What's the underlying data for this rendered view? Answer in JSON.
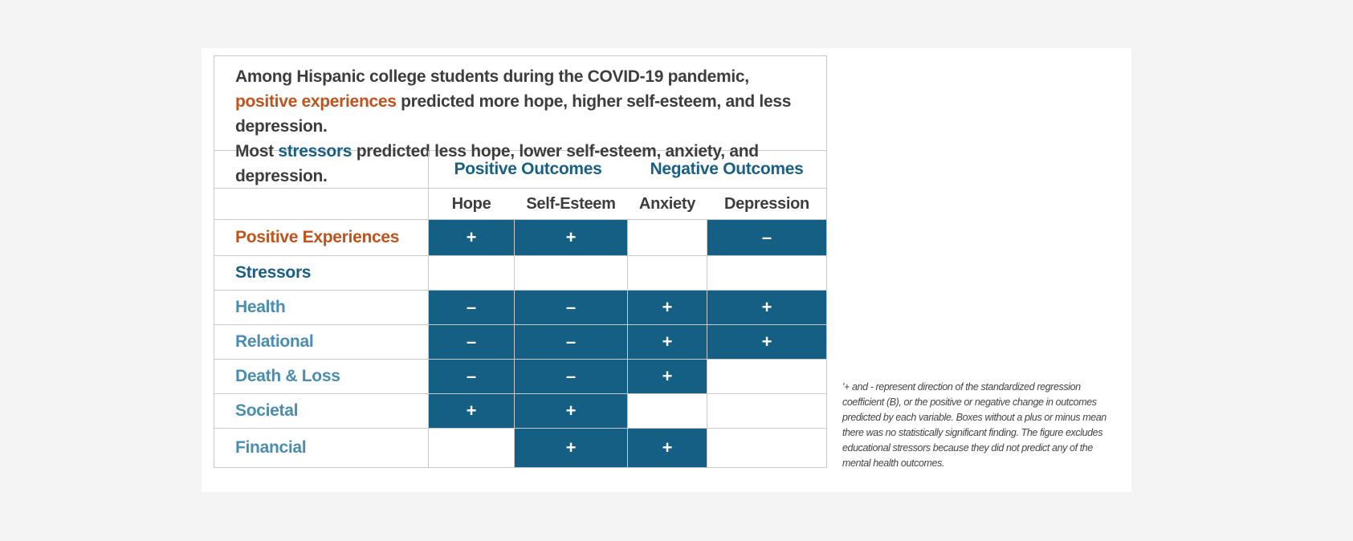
{
  "title": {
    "part1": "Among Hispanic college students during the COVID-19 pandemic, ",
    "positive_word": "positive experiences",
    "part2": " predicted more hope, higher self-esteem, and less depression.",
    "part3": "Most ",
    "stressors_word": "stressors",
    "part4": " predicted less hope, lower self-esteem, anxiety, and depression."
  },
  "group_headers": {
    "positive": "Positive Outcomes",
    "negative": "Negative Outcomes"
  },
  "columns": [
    "Hope",
    "Self-Esteem",
    "Anxiety",
    "Depression"
  ],
  "rows": {
    "positive_experiences": {
      "label": "Positive Experiences",
      "cells": [
        "+",
        "+",
        "",
        "–"
      ]
    },
    "stressors_header": "Stressors",
    "health": {
      "label": "Health",
      "cells": [
        "–",
        "–",
        "+",
        "+"
      ]
    },
    "relational": {
      "label": "Relational",
      "cells": [
        "–",
        "–",
        "+",
        "+"
      ]
    },
    "death_loss": {
      "label": "Death & Loss",
      "cells": [
        "–",
        "–",
        "+",
        ""
      ]
    },
    "societal": {
      "label": "Societal",
      "cells": [
        "+",
        "+",
        "",
        ""
      ]
    },
    "financial": {
      "label": "Financial",
      "cells": [
        "",
        "+",
        "+",
        ""
      ]
    }
  },
  "footnote": "'+ and - represent direction of the standardized regression coefficient (B), or the positive or negative change in outcomes predicted by each variable. Boxes without a plus or minus mean there was no statistically significant finding. The figure excludes educational stressors because they did not predict any of the mental health outcomes.",
  "colors": {
    "cell_fill": "#155e84",
    "positive_accent": "#c0531d",
    "stressor_accent": "#185f84",
    "stressor_sub": "#4a8db0"
  }
}
